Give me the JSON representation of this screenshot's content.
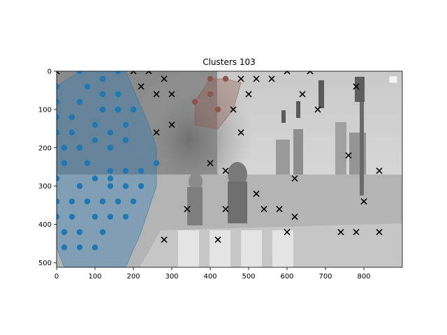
{
  "chart_data": {
    "type": "scatter",
    "title": "Clusters 103",
    "xlim": [
      0,
      900
    ],
    "ylim": [
      512,
      0
    ],
    "y_inverted": true,
    "xticks": [
      0,
      100,
      200,
      300,
      400,
      500,
      600,
      700,
      800
    ],
    "yticks": [
      0,
      100,
      200,
      300,
      400,
      500
    ],
    "background": "grayscale photograph of a city street crosswalk with pedestrians, traffic lights and buildings",
    "legend": {
      "placement": "top-right",
      "entries": []
    },
    "grid": false,
    "colors": {
      "cluster_blue": "#1f77b4",
      "cluster_brown": "#8c564b",
      "noise": "#000000"
    },
    "series": [
      {
        "marker": "circle",
        "color": "#1f77b4",
        "hull": [
          [
            0,
            40
          ],
          [
            60,
            0
          ],
          [
            180,
            0
          ],
          [
            240,
            140
          ],
          [
            260,
            200
          ],
          [
            260,
            300
          ],
          [
            220,
            420
          ],
          [
            180,
            512
          ],
          [
            20,
            512
          ],
          [
            0,
            460
          ]
        ],
        "points": [
          [
            60,
            0
          ],
          [
            160,
            0
          ],
          [
            120,
            20
          ],
          [
            80,
            40
          ],
          [
            0,
            40
          ],
          [
            120,
            60
          ],
          [
            160,
            60
          ],
          [
            60,
            80
          ],
          [
            0,
            80
          ],
          [
            120,
            100
          ],
          [
            160,
            100
          ],
          [
            200,
            100
          ],
          [
            0,
            120
          ],
          [
            40,
            120
          ],
          [
            100,
            140
          ],
          [
            180,
            140
          ],
          [
            0,
            160
          ],
          [
            40,
            160
          ],
          [
            140,
            160
          ],
          [
            100,
            180
          ],
          [
            180,
            180
          ],
          [
            20,
            200
          ],
          [
            60,
            200
          ],
          [
            140,
            200
          ],
          [
            20,
            240
          ],
          [
            80,
            240
          ],
          [
            260,
            240
          ],
          [
            140,
            260
          ],
          [
            180,
            260
          ],
          [
            220,
            260
          ],
          [
            0,
            280
          ],
          [
            100,
            280
          ],
          [
            140,
            280
          ],
          [
            60,
            300
          ],
          [
            140,
            300
          ],
          [
            180,
            300
          ],
          [
            220,
            300
          ],
          [
            0,
            340
          ],
          [
            40,
            340
          ],
          [
            80,
            340
          ],
          [
            120,
            340
          ],
          [
            160,
            340
          ],
          [
            200,
            340
          ],
          [
            0,
            380
          ],
          [
            40,
            380
          ],
          [
            100,
            380
          ],
          [
            140,
            380
          ],
          [
            180,
            380
          ],
          [
            20,
            420
          ],
          [
            60,
            420
          ],
          [
            120,
            420
          ],
          [
            20,
            460
          ],
          [
            60,
            460
          ],
          [
            100,
            460
          ]
        ]
      },
      {
        "marker": "circle",
        "color": "#8c564b",
        "hull": [
          [
            400,
            20
          ],
          [
            440,
            20
          ],
          [
            480,
            30
          ],
          [
            460,
            100
          ],
          [
            420,
            150
          ],
          [
            360,
            140
          ],
          [
            360,
            80
          ]
        ],
        "points": [
          [
            400,
            20
          ],
          [
            440,
            20
          ],
          [
            400,
            60
          ],
          [
            360,
            80
          ],
          [
            420,
            100
          ]
        ]
      },
      {
        "marker": "x",
        "color": "#000000",
        "points": [
          [
            0,
            0
          ],
          [
            200,
            0
          ],
          [
            240,
            0
          ],
          [
            600,
            0
          ],
          [
            660,
            0
          ],
          [
            280,
            20
          ],
          [
            480,
            20
          ],
          [
            520,
            20
          ],
          [
            560,
            20
          ],
          [
            220,
            40
          ],
          [
            780,
            40
          ],
          [
            260,
            60
          ],
          [
            300,
            60
          ],
          [
            500,
            60
          ],
          [
            640,
            60
          ],
          [
            460,
            100
          ],
          [
            680,
            100
          ],
          [
            300,
            140
          ],
          [
            260,
            160
          ],
          [
            480,
            160
          ],
          [
            760,
            220
          ],
          [
            400,
            240
          ],
          [
            440,
            260
          ],
          [
            840,
            260
          ],
          [
            620,
            280
          ],
          [
            520,
            320
          ],
          [
            800,
            340
          ],
          [
            340,
            360
          ],
          [
            440,
            360
          ],
          [
            540,
            360
          ],
          [
            580,
            360
          ],
          [
            620,
            380
          ],
          [
            600,
            420
          ],
          [
            740,
            420
          ],
          [
            780,
            420
          ],
          [
            840,
            420
          ],
          [
            280,
            440
          ],
          [
            420,
            440
          ]
        ]
      }
    ]
  }
}
